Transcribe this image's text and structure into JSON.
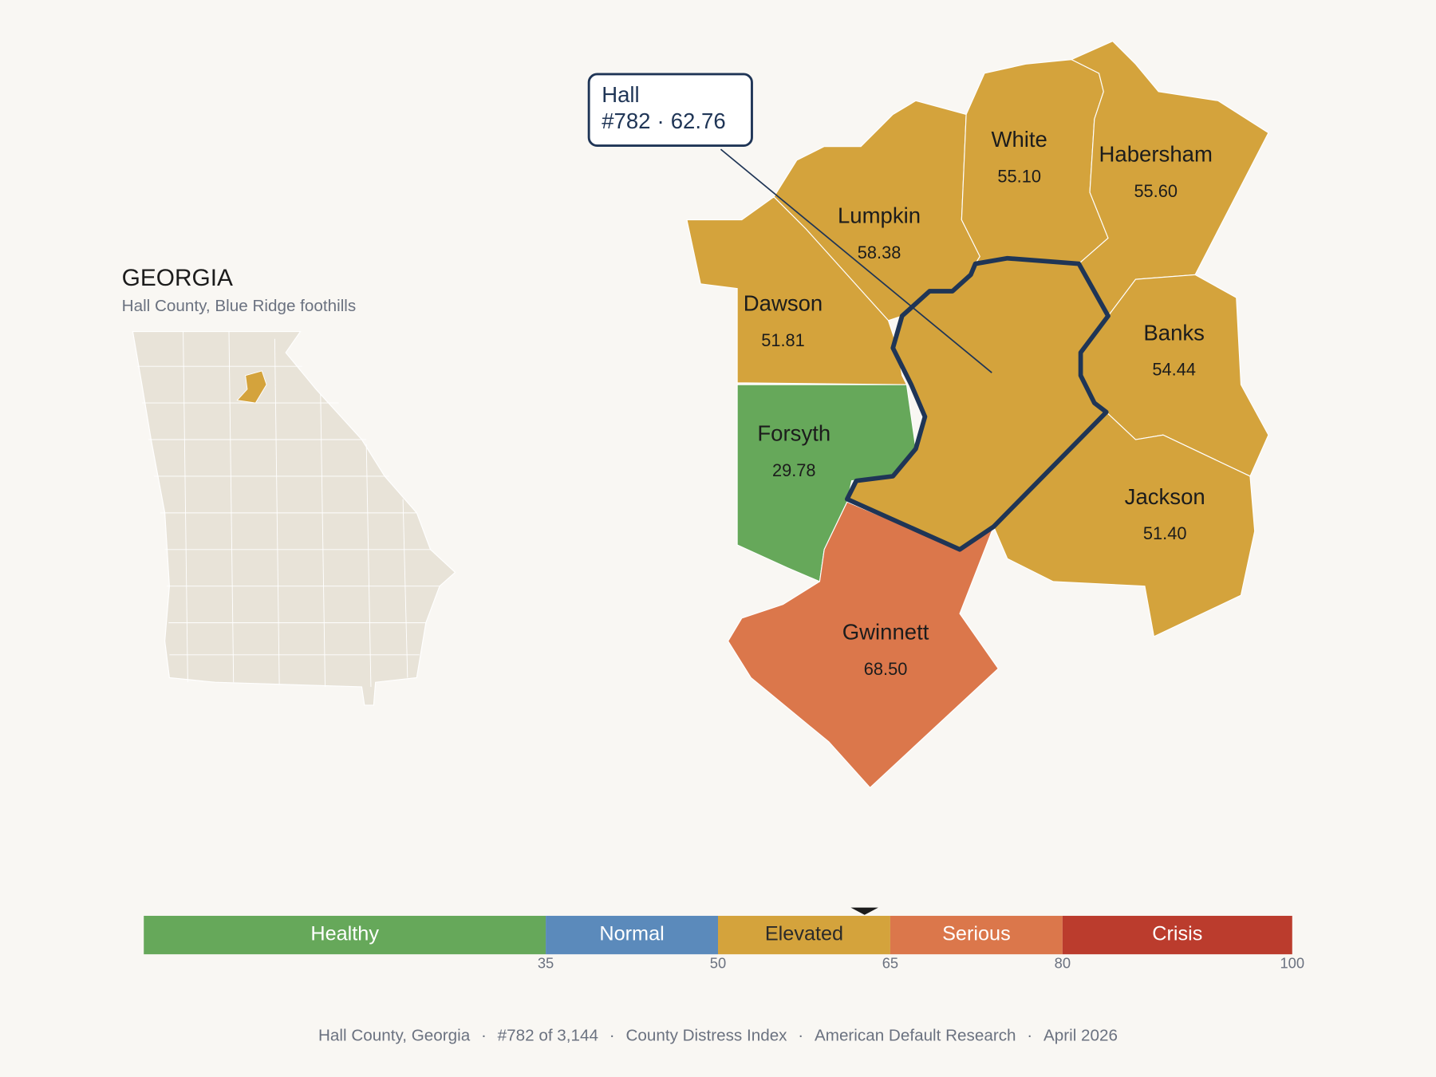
{
  "header": {
    "title": "GEORGIA",
    "subtitle": "Hall County, Blue Ridge foothills"
  },
  "separator": "·",
  "callout": {
    "name": "Hall",
    "rank": "#782",
    "score": 62.76
  },
  "counties": [
    {
      "name": "Lumpkin",
      "score": {
        "value": 58.38,
        "label": "58.38"
      }
    },
    {
      "name": "White",
      "score": {
        "value": 55.1,
        "label": "55.10"
      }
    },
    {
      "name": "Habersham",
      "score": {
        "value": 55.6,
        "label": "55.60"
      }
    },
    {
      "name": "Dawson",
      "score": {
        "value": 51.81,
        "label": "51.81"
      }
    },
    {
      "name": "Banks",
      "score": {
        "value": 54.44,
        "label": "54.44"
      }
    },
    {
      "name": "Forsyth",
      "score": {
        "value": 29.78,
        "label": "29.78"
      }
    },
    {
      "name": "Jackson",
      "score": {
        "value": 51.4,
        "label": "51.40"
      }
    },
    {
      "name": "Gwinnett",
      "score": {
        "value": 68.5,
        "label": "68.50"
      }
    }
  ],
  "legend": {
    "scale": [
      0,
      100
    ],
    "ticks": [
      35,
      50,
      65,
      80,
      100
    ],
    "bands": [
      {
        "label": "Healthy",
        "color": "#66a85a",
        "label_color": "#ffffff"
      },
      {
        "label": "Normal",
        "color": "#5b8abb",
        "label_color": "#ffffff"
      },
      {
        "label": "Elevated",
        "color": "#d4a33c",
        "label_color": "#2a2a2a"
      },
      {
        "label": "Serious",
        "color": "#db774b",
        "label_color": "#ffffff"
      },
      {
        "label": "Crisis",
        "color": "#bb3c2d",
        "label_color": "#ffffff"
      }
    ]
  },
  "footer": [
    "Hall County, Georgia",
    "#782 of 3,144",
    "County Distress Index",
    "American Default Research",
    "April 2026"
  ]
}
